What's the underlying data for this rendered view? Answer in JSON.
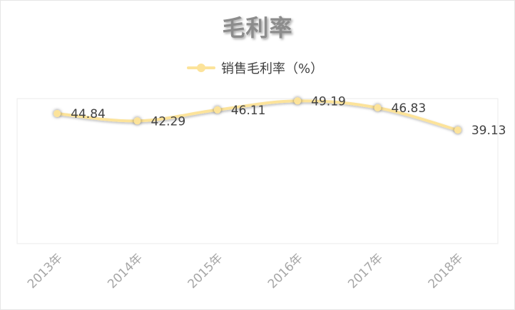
{
  "chart_data": {
    "type": "line",
    "title": "毛利率",
    "categories": [
      "2013年",
      "2014年",
      "2015年",
      "2016年",
      "2017年",
      "2018年"
    ],
    "series": [
      {
        "name": "销售毛利率（%）",
        "values": [
          44.84,
          42.29,
          46.11,
          49.19,
          46.83,
          39.13
        ]
      }
    ],
    "data_labels": [
      "44.84",
      "42.29",
      "46.11",
      "49.19",
      "46.83",
      "39.13"
    ],
    "ylim": [
      0,
      50
    ],
    "grid": false,
    "legend_position": "top",
    "colors": {
      "series": "#fce39a",
      "title": "#8c8c8c",
      "tick": "#a6a6a6",
      "label": "#404040"
    }
  }
}
